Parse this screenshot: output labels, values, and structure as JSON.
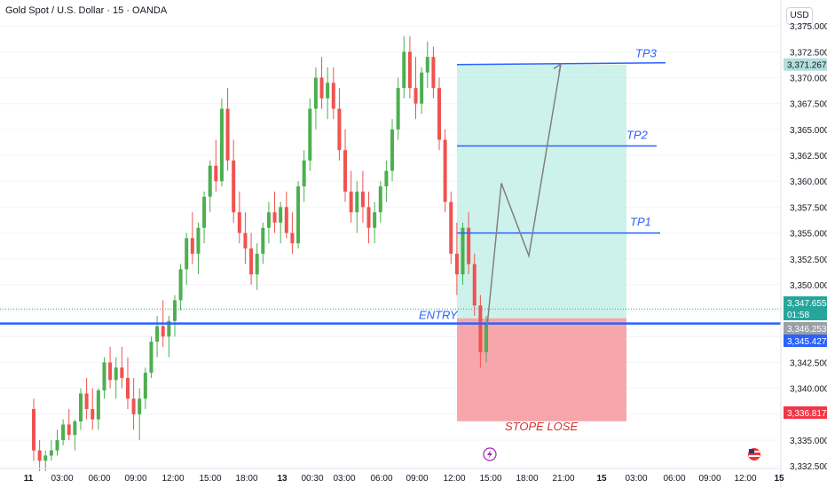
{
  "header": {
    "title": "Gold Spot / U.S. Dollar · 15 · OANDA",
    "currency": "USD"
  },
  "colors": {
    "bull": "#26a69a",
    "bull_body": "#4caf50",
    "bear": "#ef5350",
    "tp_line": "#2962ff",
    "entry_line": "#2962ff",
    "profit_zone": "#b2ebe0",
    "loss_zone": "#f7a1a6",
    "path": "#808080",
    "price_green": "#26a69a",
    "price_blue": "#2962ff",
    "price_red": "#f23645",
    "price_gray": "#6b7280"
  },
  "chart_data": {
    "type": "candlestick",
    "y_axis": {
      "min": 3332.5,
      "max": 3375.0,
      "ticks": [
        "3,332.500",
        "3,335.000",
        "3,337.500",
        "3,340.000",
        "3,342.500",
        "3,345.000",
        "3,347.500",
        "3,350.000",
        "3,352.500",
        "3,355.000",
        "3,357.500",
        "3,360.000",
        "3,362.500",
        "3,365.000",
        "3,367.500",
        "3,370.000",
        "3,372.500",
        "3,375.000"
      ],
      "tick_values": [
        3332.5,
        3335,
        3337.5,
        3340,
        3342.5,
        3345,
        3347.5,
        3350,
        3352.5,
        3355,
        3357.5,
        3360,
        3362.5,
        3365,
        3367.5,
        3370,
        3372.5,
        3375
      ]
    },
    "x_axis": {
      "labels": [
        "11",
        "03:00",
        "06:00",
        "09:00",
        "12:00",
        "15:00",
        "18:00",
        "13",
        "00:30",
        "03:00",
        "06:00",
        "09:00",
        "12:00",
        "15:00",
        "18:00",
        "21:00",
        "15",
        "03:00",
        "06:00",
        "09:00",
        "12:00",
        "15"
      ]
    },
    "levels": {
      "tp3": {
        "label": "TP3",
        "value": 3371.267
      },
      "tp2": {
        "label": "TP2",
        "value": 3363.4
      },
      "tp1": {
        "label": "TP1",
        "value": 3355.0
      },
      "entry": {
        "label": "ENTRY",
        "value": 3346.253
      },
      "stop": {
        "label": "STOPE LOSE",
        "value": 3336.817
      }
    },
    "price_labels": [
      {
        "text": "3,371.267",
        "value": 3371.267,
        "kind": "green"
      },
      {
        "text": "3,347.655",
        "value": 3347.655,
        "kind": "green"
      },
      {
        "text": "01:58",
        "value": 3346.8,
        "kind": "green"
      },
      {
        "text": "3,346.253",
        "value": 3346.253,
        "kind": "gray"
      },
      {
        "text": "3,345.427",
        "value": 3345.427,
        "kind": "blue"
      },
      {
        "text": "3,336.817",
        "value": 3336.817,
        "kind": "red"
      }
    ],
    "projection_path": [
      3346.0,
      3359.8,
      3352.8,
      3371.3
    ],
    "candles": [
      [
        3338,
        3339,
        3333,
        3334
      ],
      [
        3334,
        3335,
        3332,
        3333
      ],
      [
        3333,
        3334,
        3332,
        3333.5
      ],
      [
        3333.5,
        3335,
        3333,
        3334
      ],
      [
        3334,
        3336,
        3333.5,
        3335
      ],
      [
        3335,
        3337,
        3334.5,
        3336.5
      ],
      [
        3336.5,
        3338,
        3335,
        3335.5
      ],
      [
        3335.5,
        3337,
        3334,
        3336.8
      ],
      [
        3336.8,
        3340,
        3336,
        3339.5
      ],
      [
        3339.5,
        3341,
        3337,
        3338
      ],
      [
        3338,
        3340,
        3336,
        3337
      ],
      [
        3337,
        3340,
        3336,
        3339.8
      ],
      [
        3339.8,
        3343,
        3339,
        3342.5
      ],
      [
        3342.5,
        3344,
        3340,
        3340.8
      ],
      [
        3340.8,
        3343,
        3339,
        3342
      ],
      [
        3342,
        3344,
        3340,
        3341
      ],
      [
        3341,
        3343,
        3338,
        3339
      ],
      [
        3339,
        3341,
        3336,
        3337.5
      ],
      [
        3337.5,
        3340,
        3335,
        3339
      ],
      [
        3339,
        3342,
        3338,
        3341.5
      ],
      [
        3341.5,
        3345,
        3341,
        3344.5
      ],
      [
        3344.5,
        3347,
        3343,
        3346
      ],
      [
        3346,
        3348.5,
        3344,
        3345
      ],
      [
        3345,
        3347,
        3343,
        3346.5
      ],
      [
        3346.5,
        3349,
        3345,
        3348.5
      ],
      [
        3348.5,
        3352,
        3347.5,
        3351.5
      ],
      [
        3351.5,
        3355,
        3350,
        3354.5
      ],
      [
        3354.5,
        3357,
        3352,
        3353
      ],
      [
        3353,
        3356,
        3351,
        3355.5
      ],
      [
        3355.5,
        3359,
        3354,
        3358.5
      ],
      [
        3358.5,
        3362,
        3357,
        3361.5
      ],
      [
        3361.5,
        3364,
        3359,
        3360
      ],
      [
        3360,
        3368,
        3359.5,
        3367
      ],
      [
        3367,
        3369,
        3361,
        3362
      ],
      [
        3362,
        3364,
        3356,
        3357
      ],
      [
        3357,
        3359,
        3354,
        3355
      ],
      [
        3355,
        3357,
        3352,
        3353.5
      ],
      [
        3353.5,
        3355,
        3350,
        3351
      ],
      [
        3351,
        3354,
        3349.5,
        3353
      ],
      [
        3353,
        3356,
        3352,
        3355.5
      ],
      [
        3355.5,
        3358,
        3354,
        3357
      ],
      [
        3357,
        3359,
        3355,
        3356
      ],
      [
        3356,
        3358,
        3354,
        3357.5
      ],
      [
        3357.5,
        3359,
        3354.5,
        3355
      ],
      [
        3355,
        3357,
        3353,
        3354
      ],
      [
        3354,
        3360,
        3353.5,
        3359.5
      ],
      [
        3359.5,
        3363,
        3358,
        3362
      ],
      [
        3362,
        3368,
        3361,
        3367
      ],
      [
        3367,
        3371,
        3365,
        3370
      ],
      [
        3370,
        3372,
        3367,
        3368
      ],
      [
        3368,
        3371,
        3366,
        3369.5
      ],
      [
        3369.5,
        3371,
        3366,
        3367
      ],
      [
        3367,
        3369,
        3362,
        3363
      ],
      [
        3363,
        3365,
        3358,
        3359
      ],
      [
        3359,
        3361,
        3356,
        3357
      ],
      [
        3357,
        3360,
        3355,
        3359
      ],
      [
        3359,
        3361,
        3356,
        3357.5
      ],
      [
        3357.5,
        3359,
        3354,
        3355.5
      ],
      [
        3355.5,
        3358,
        3354,
        3357
      ],
      [
        3357,
        3360,
        3356,
        3359.5
      ],
      [
        3359.5,
        3362,
        3358,
        3361
      ],
      [
        3361,
        3366,
        3360,
        3365
      ],
      [
        3365,
        3370,
        3364,
        3369
      ],
      [
        3369,
        3374,
        3368,
        3372.5
      ],
      [
        3372.5,
        3374,
        3368,
        3369
      ],
      [
        3369,
        3372,
        3366,
        3367.5
      ],
      [
        3367.5,
        3371,
        3366.5,
        3370.5
      ],
      [
        3370.5,
        3373.5,
        3369,
        3372
      ],
      [
        3372,
        3373,
        3368,
        3369
      ],
      [
        3369,
        3370,
        3363,
        3364
      ],
      [
        3364,
        3365,
        3357,
        3358
      ],
      [
        3358,
        3359,
        3352,
        3353
      ],
      [
        3353,
        3356,
        3349,
        3351
      ],
      [
        3351,
        3356,
        3350,
        3355.5
      ],
      [
        3355.5,
        3357,
        3351,
        3352
      ],
      [
        3352,
        3353,
        3347,
        3348
      ],
      [
        3348,
        3349,
        3342,
        3343.5
      ],
      [
        3343.5,
        3347,
        3342.5,
        3346.2
      ]
    ]
  }
}
